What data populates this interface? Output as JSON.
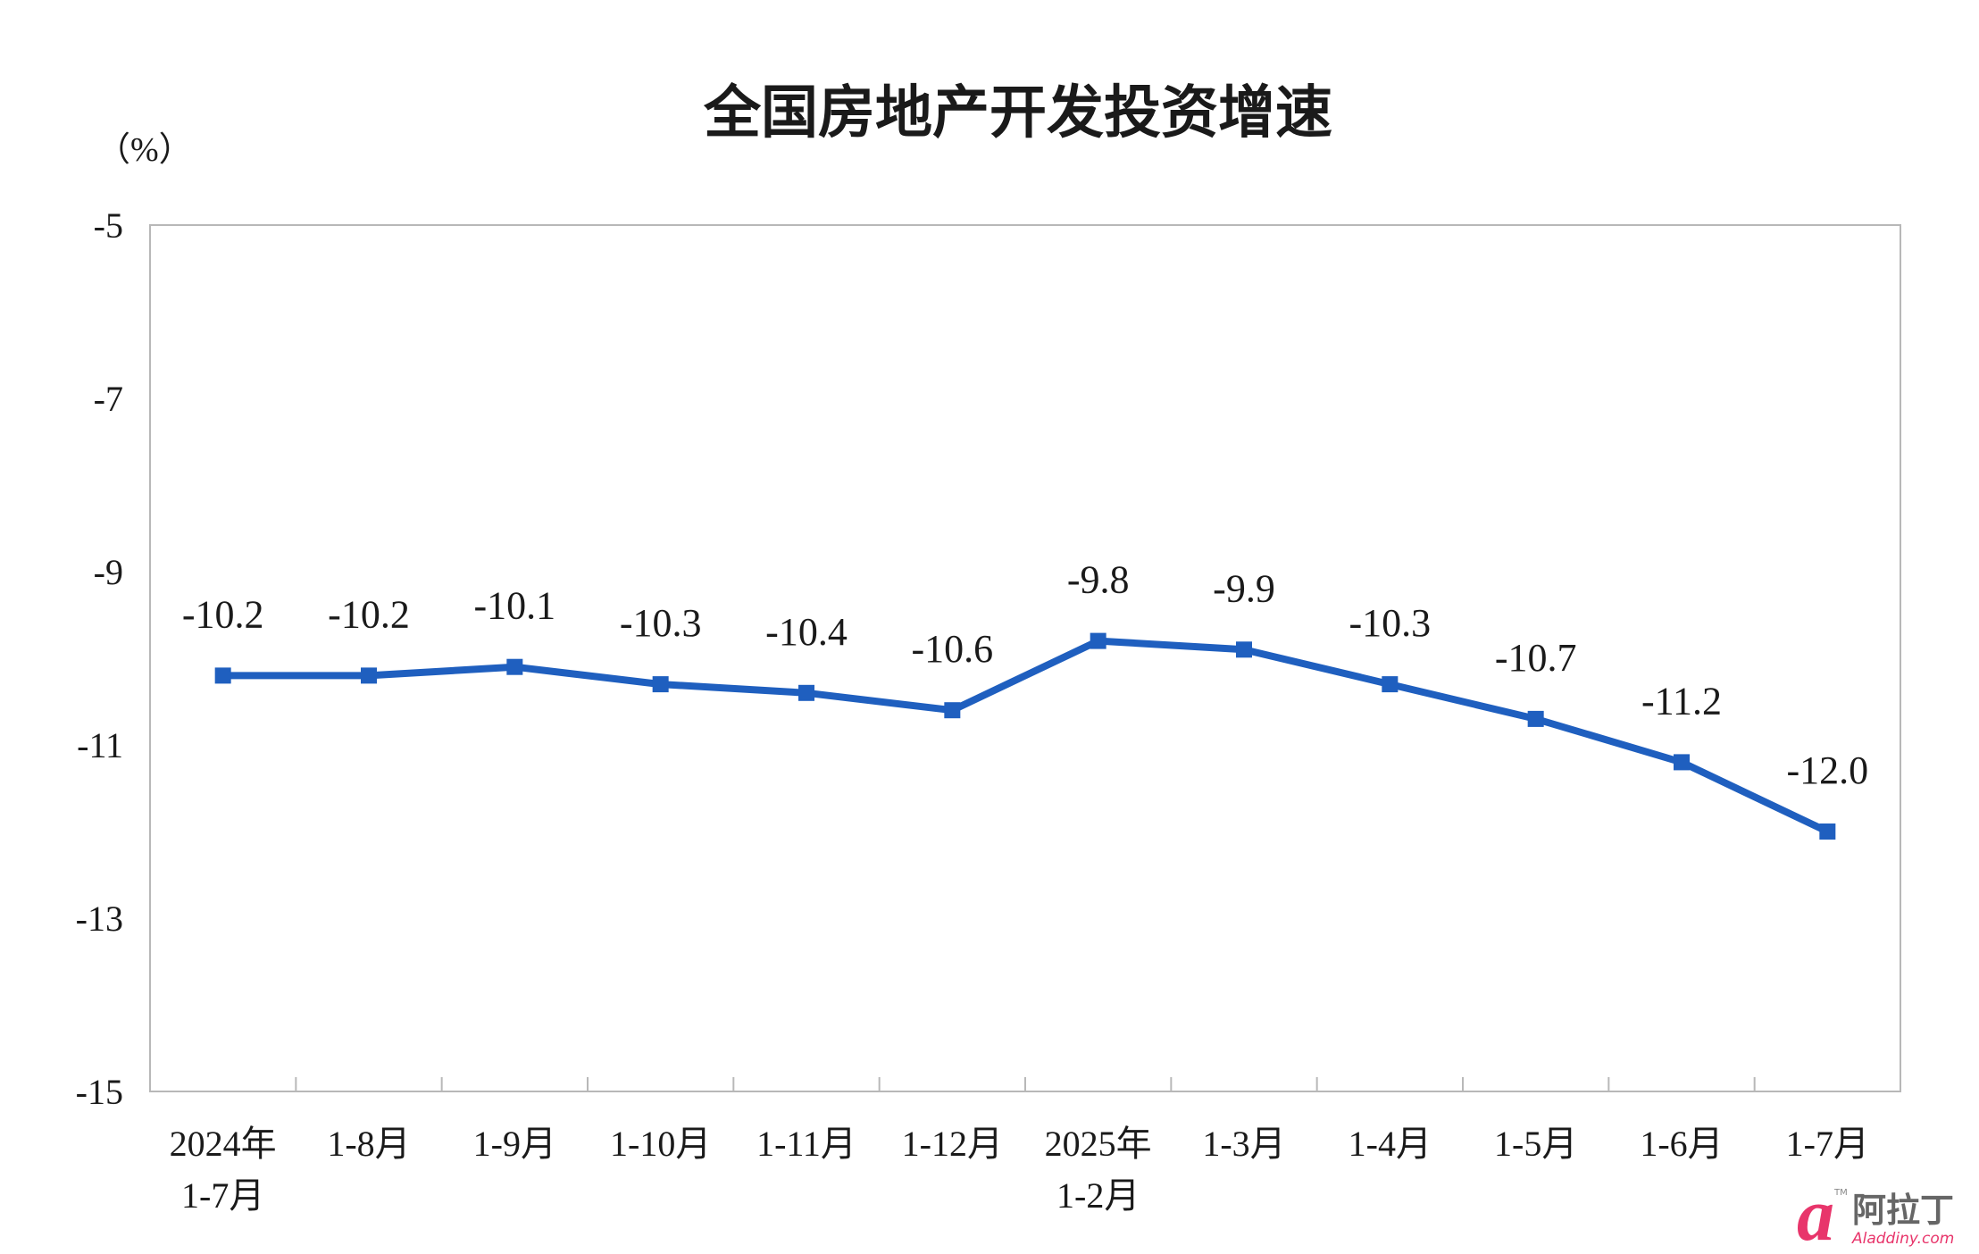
{
  "chart_data": {
    "type": "line",
    "title": "全国房地产开发投资增速",
    "unit_label": "（%）",
    "categories": [
      [
        "2024年",
        "1-7月"
      ],
      [
        "1-8月"
      ],
      [
        "1-9月"
      ],
      [
        "1-10月"
      ],
      [
        "1-11月"
      ],
      [
        "1-12月"
      ],
      [
        "2025年",
        "1-2月"
      ],
      [
        "1-3月"
      ],
      [
        "1-4月"
      ],
      [
        "1-5月"
      ],
      [
        "1-6月"
      ],
      [
        "1-7月"
      ]
    ],
    "series": [
      {
        "values": [
          -10.2,
          -10.2,
          -10.1,
          -10.3,
          -10.4,
          -10.6,
          -9.8,
          -9.9,
          -10.3,
          -10.7,
          -11.2,
          -12.0
        ],
        "labels": [
          "-10.2",
          "-10.2",
          "-10.1",
          "-10.3",
          "-10.4",
          "-10.6",
          "-9.8",
          "-9.9",
          "-10.3",
          "-10.7",
          "-11.2",
          "-12.0"
        ]
      }
    ],
    "yticks": [
      "-5",
      "-7",
      "-9",
      "-11",
      "-13",
      "-15"
    ],
    "ylim": [
      -15,
      -5
    ],
    "grid": false,
    "legend": "none",
    "line_color": "#1F5FBF",
    "axis_color": "#b8b8b8",
    "text_color": "#1a1a1a"
  },
  "watermark": {
    "glyph": "a",
    "cn": "阿拉丁",
    "url": "Aladdiny.com",
    "tm": "TM",
    "color": "#e8356b"
  }
}
